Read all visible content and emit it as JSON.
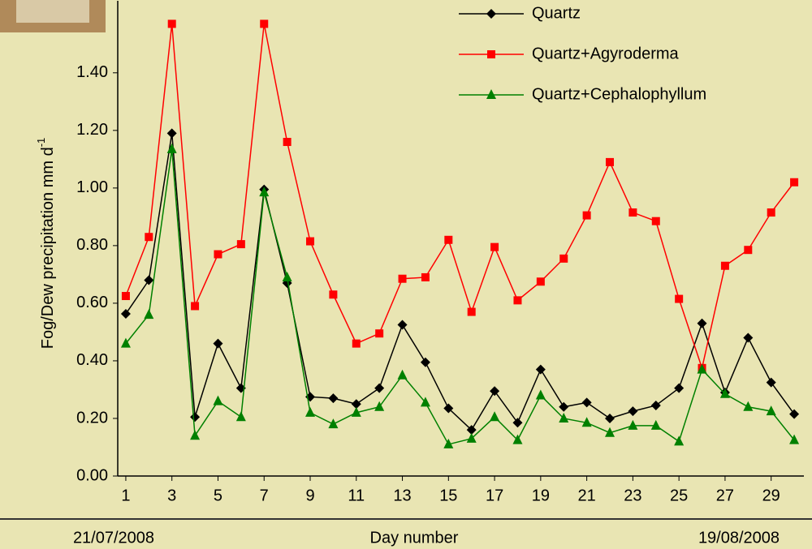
{
  "chart_data": {
    "type": "line",
    "y_label": "Fog/Dew precipitation mm d",
    "y_label_superscript": "-1",
    "x_label": "Day number",
    "start_date": "21/07/2008",
    "end_date": "19/08/2008",
    "x": [
      1,
      2,
      3,
      4,
      5,
      6,
      7,
      8,
      9,
      10,
      11,
      12,
      13,
      14,
      15,
      16,
      17,
      18,
      19,
      20,
      21,
      22,
      23,
      24,
      25,
      26,
      27,
      28,
      29,
      30
    ],
    "xlim": [
      0.65,
      30.42
    ],
    "xticks": [
      1,
      3,
      5,
      7,
      9,
      11,
      13,
      15,
      17,
      19,
      21,
      23,
      25,
      27,
      29
    ],
    "ylim": [
      0,
      1.65
    ],
    "yticks": [
      {
        "value": 0,
        "label": "0.00"
      },
      {
        "value": 0.2,
        "label": "0.20"
      },
      {
        "value": 0.4,
        "label": "0.40"
      },
      {
        "value": 0.6,
        "label": "0.60"
      },
      {
        "value": 0.8,
        "label": "0.80"
      },
      {
        "value": 1.0,
        "label": "1.00"
      },
      {
        "value": 1.2,
        "label": "1.20"
      },
      {
        "value": 1.4,
        "label": "1.40"
      }
    ],
    "series": [
      {
        "name": "Quartz",
        "color": "#000000",
        "marker": "diamond",
        "values": [
          0.563,
          0.68,
          1.19,
          0.205,
          0.46,
          0.305,
          0.995,
          0.67,
          0.275,
          0.27,
          0.25,
          0.305,
          0.525,
          0.395,
          0.235,
          0.16,
          0.295,
          0.185,
          0.37,
          0.24,
          0.255,
          0.2,
          0.225,
          0.245,
          0.305,
          0.53,
          0.29,
          0.48,
          0.325,
          0.215
        ]
      },
      {
        "name": "Quartz+Agyroderma",
        "color": "#ff0000",
        "marker": "square",
        "values": [
          0.625,
          0.83,
          1.57,
          0.59,
          0.77,
          0.805,
          1.57,
          1.16,
          0.815,
          0.63,
          0.46,
          0.495,
          0.685,
          0.69,
          0.82,
          0.57,
          0.795,
          0.61,
          0.675,
          0.755,
          0.905,
          1.09,
          0.915,
          0.885,
          0.615,
          0.375,
          0.73,
          0.785,
          0.915,
          1.02
        ]
      },
      {
        "name": "Quartz+Cephalophyllum",
        "color": "#008000",
        "marker": "triangle",
        "values": [
          0.46,
          0.56,
          1.135,
          0.14,
          0.26,
          0.205,
          0.985,
          0.69,
          0.22,
          0.18,
          0.22,
          0.24,
          0.35,
          0.255,
          0.11,
          0.13,
          0.205,
          0.125,
          0.28,
          0.2,
          0.185,
          0.15,
          0.175,
          0.175,
          0.12,
          0.37,
          0.285,
          0.24,
          0.225,
          0.125
        ]
      }
    ]
  }
}
